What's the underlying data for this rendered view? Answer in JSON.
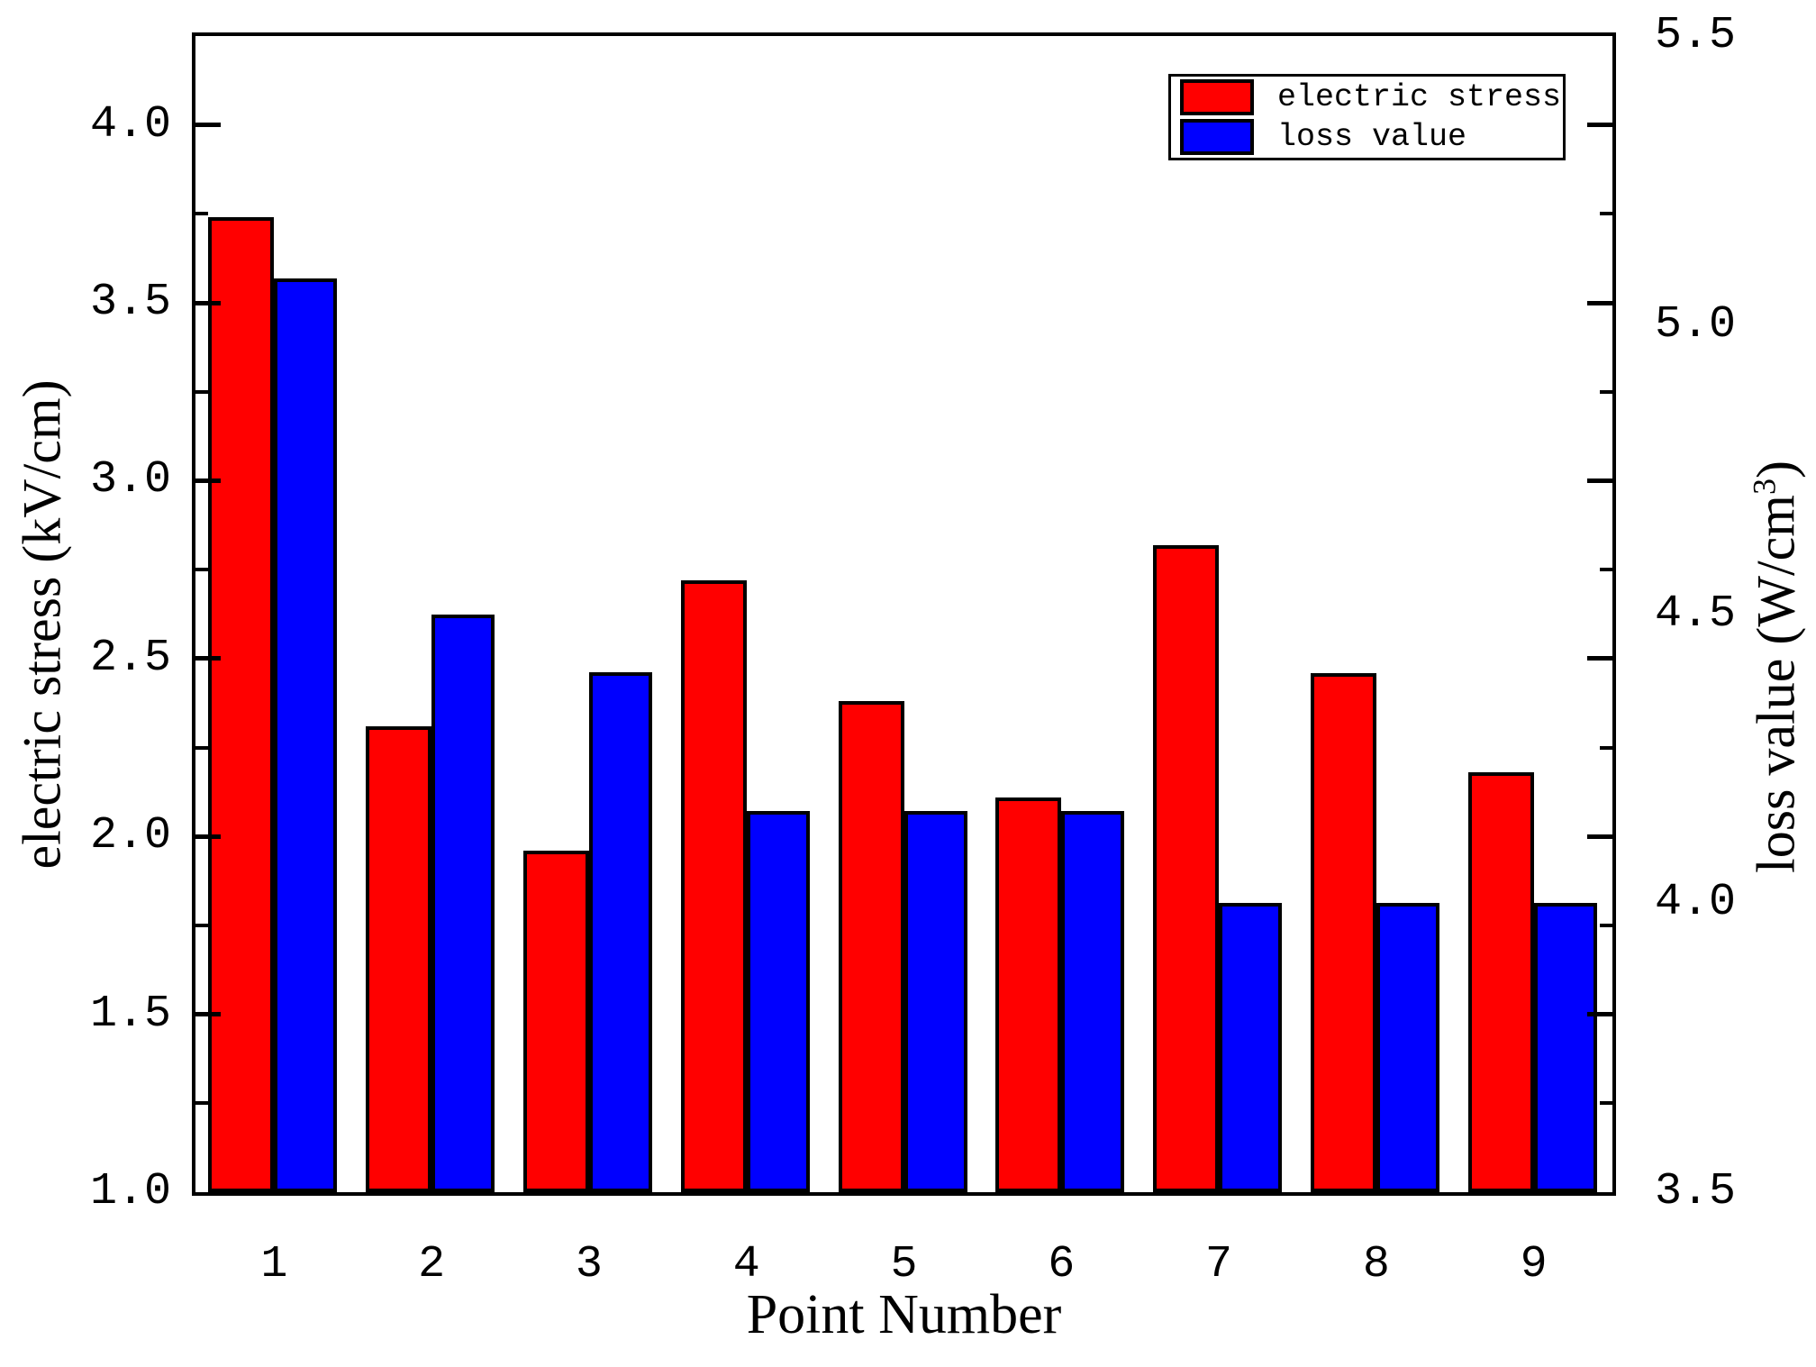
{
  "chart_data": {
    "type": "bar",
    "title": "",
    "categories": [
      "1",
      "2",
      "3",
      "4",
      "5",
      "6",
      "7",
      "8",
      "9"
    ],
    "series": [
      {
        "name": "electric stress",
        "axis": "left",
        "color": "#ff0000",
        "values": [
          3.74,
          2.31,
          1.96,
          2.72,
          2.38,
          2.11,
          2.82,
          2.46,
          2.18
        ]
      },
      {
        "name": "loss value",
        "axis": "right",
        "color": "#0000ff",
        "values": [
          5.08,
          4.5,
          4.4,
          4.16,
          4.16,
          4.16,
          4.0,
          4.0,
          4.0
        ]
      }
    ],
    "xlabel": "Point Number",
    "ylabel_left": "electric stress (kV/cm)",
    "ylabel_right": "loss value (W/cm³)",
    "left_axis": {
      "min": 1.0,
      "max": 4.25,
      "tick_labels": [
        "4.0",
        "3.5",
        "3.0",
        "2.5",
        "2.0",
        "1.5",
        "1.0"
      ],
      "major_tick_values": [
        4.0,
        3.5,
        3.0,
        2.5,
        2.0,
        1.5
      ],
      "minor_tick_values": [
        3.75,
        3.25,
        2.75,
        2.25,
        1.75,
        1.25
      ],
      "label_values": [
        4.0,
        3.5,
        3.0,
        2.5,
        2.0,
        1.5,
        1.0
      ]
    },
    "right_axis": {
      "min": 3.5,
      "max": 5.5,
      "tick_labels": [
        "5.5",
        "5.0",
        "4.5",
        "4.0",
        "3.5"
      ],
      "label_values": [
        5.5,
        5.0,
        4.5,
        4.0,
        3.5
      ]
    },
    "grid": "off",
    "legend_position": "top-right",
    "bar_border_color": "#000000",
    "background_color": "#ffffff"
  },
  "right_title_parts": {
    "prefix": "loss value (W/cm",
    "sup": "3",
    "suffix": ")"
  },
  "legend": {
    "entries": [
      {
        "label": "electric stress",
        "color": "#ff0000"
      },
      {
        "label": "loss value",
        "color": "#0000ff"
      }
    ]
  }
}
